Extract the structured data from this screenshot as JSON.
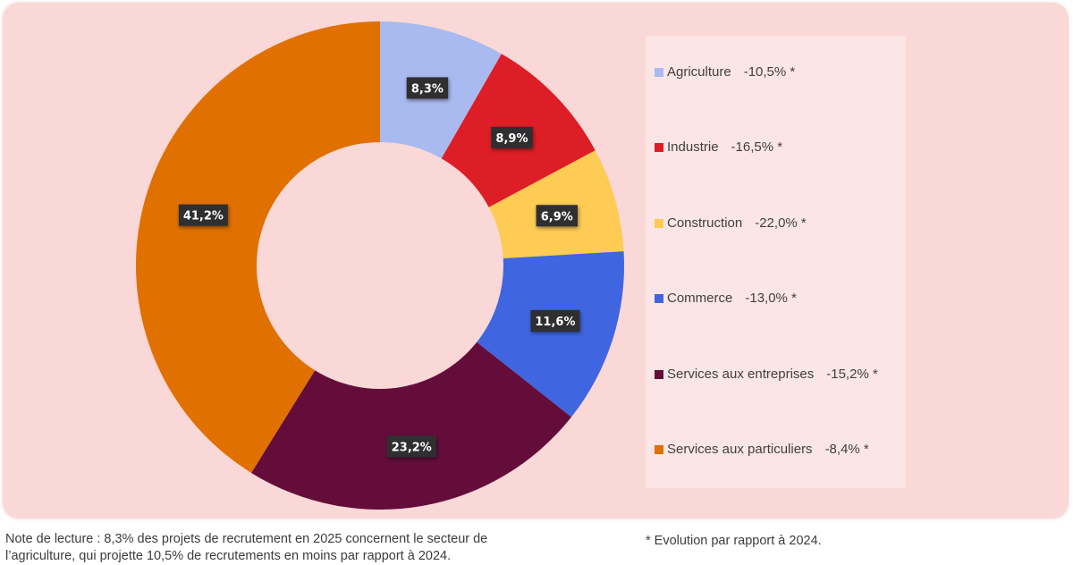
{
  "chart_data": {
    "type": "pie",
    "variant": "donut",
    "title": "",
    "categories": [
      "Agriculture",
      "Industrie",
      "Construction",
      "Commerce",
      "Services aux entreprises",
      "Services aux particuliers"
    ],
    "values": [
      8.3,
      8.9,
      6.9,
      11.6,
      23.2,
      41.2
    ],
    "value_labels": [
      "8,3%",
      "8,9%",
      "6,9%",
      "11,6%",
      "23,2%",
      "41,2%"
    ],
    "evolution_labels": [
      "-10,5% *",
      "-16,5% *",
      "-22,0% *",
      "-13,0% *",
      "-15,2% *",
      "-8,4% *"
    ],
    "evolution_values": [
      -10.5,
      -16.5,
      -22.0,
      -13.0,
      -15.2,
      -8.4
    ],
    "colors": [
      "#a9baf0",
      "#dd1e26",
      "#fecb55",
      "#3f66e0",
      "#640d3a",
      "#e07000"
    ],
    "legend_position": "right",
    "start_angle": "12 o'clock, clockwise"
  },
  "note": {
    "line1": "Note de lecture : 8,3% des projets de recrutement en 2025 concernent le secteur de",
    "line2": "l’agriculture, qui projette 10,5% de recrutements en moins par rapport à 2024."
  },
  "footnote": "* Evolution par rapport à 2024."
}
